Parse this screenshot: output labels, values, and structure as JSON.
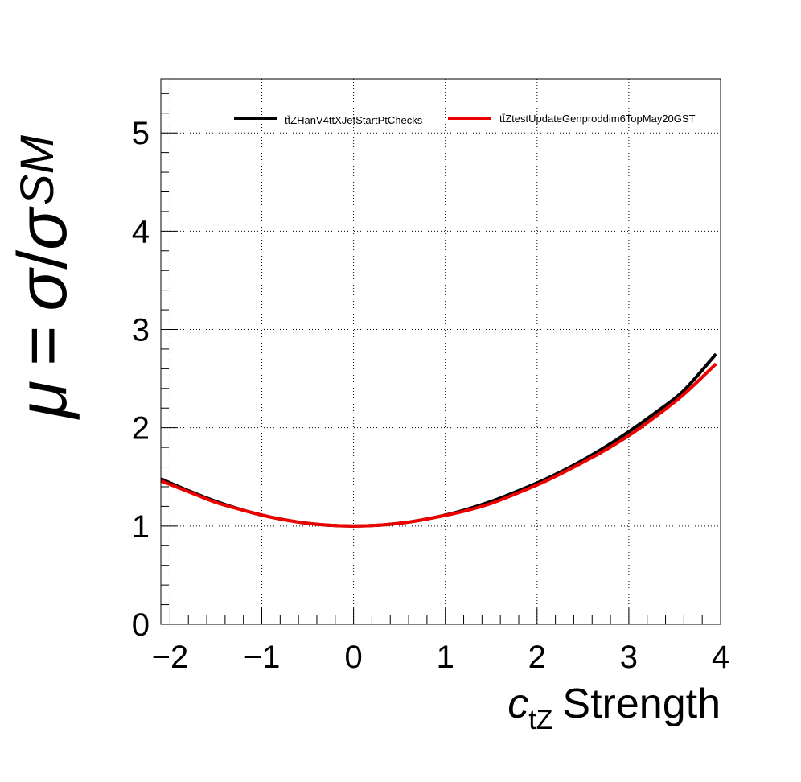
{
  "chart_data": {
    "type": "line",
    "title": "",
    "xlabel": {
      "symbol": "c",
      "subscript": "tZ",
      "text": "Strength"
    },
    "ylabel": {
      "mu": "μ",
      "eq": "=",
      "sigma": "σ",
      "slash": "/",
      "sigma2": "σ",
      "subscript": "SM"
    },
    "xlim": [
      -2.1,
      4
    ],
    "ylim": [
      0,
      5.55
    ],
    "x_ticks": [
      -2,
      -1,
      0,
      1,
      2,
      3,
      4
    ],
    "x_tick_labels": [
      "−2",
      "−1",
      "0",
      "1",
      "2",
      "3",
      "4"
    ],
    "y_ticks": [
      0,
      1,
      2,
      3,
      4,
      5
    ],
    "y_tick_labels": [
      "0",
      "1",
      "2",
      "3",
      "4",
      "5"
    ],
    "grid": true,
    "legend_position": "top-right",
    "series": [
      {
        "name": "tt̄ZHanV4ttXJetStartPtChecks",
        "color": "#000000",
        "x": [
          -2.1,
          -1.8,
          -1.5,
          -1.2,
          -0.9,
          -0.6,
          -0.3,
          0.0,
          0.3,
          0.6,
          0.9,
          1.2,
          1.5,
          1.8,
          2.1,
          2.4,
          2.7,
          3.0,
          3.3,
          3.6,
          3.95
        ],
        "y": [
          1.48,
          1.36,
          1.25,
          1.16,
          1.09,
          1.04,
          1.01,
          1.0,
          1.01,
          1.04,
          1.09,
          1.16,
          1.25,
          1.36,
          1.48,
          1.62,
          1.78,
          1.96,
          2.16,
          2.38,
          2.75
        ]
      },
      {
        "name": "tt̄ZtestUpdateGenproddim6TopMay20GST",
        "color": "#ee0000",
        "x": [
          -2.1,
          -1.8,
          -1.5,
          -1.2,
          -0.9,
          -0.6,
          -0.3,
          0.0,
          0.3,
          0.6,
          0.9,
          1.2,
          1.5,
          1.8,
          2.1,
          2.4,
          2.7,
          3.0,
          3.3,
          3.6,
          3.95
        ],
        "y": [
          1.46,
          1.35,
          1.24,
          1.16,
          1.09,
          1.04,
          1.01,
          1.0,
          1.01,
          1.04,
          1.09,
          1.15,
          1.23,
          1.34,
          1.46,
          1.6,
          1.75,
          1.92,
          2.12,
          2.34,
          2.65
        ]
      }
    ]
  }
}
